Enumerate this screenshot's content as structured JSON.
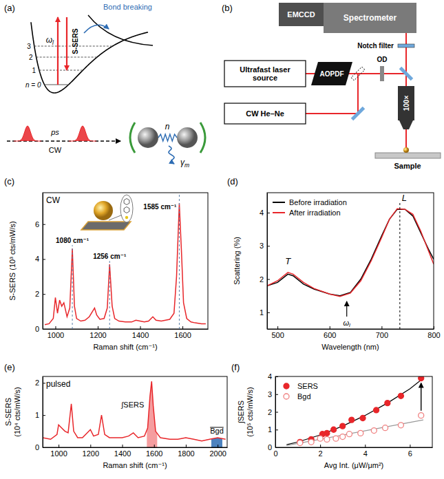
{
  "diagrams": {
    "a": {
      "panel": "(a)",
      "laser": {
        "base": "ω",
        "sub": "l"
      },
      "sers": "S-SERS",
      "bond": "Bond breaking",
      "levels": [
        "n = 0",
        "1",
        "2",
        "3"
      ],
      "pulse": "ps",
      "cw": "CW",
      "phonon": "n",
      "damping": {
        "base": "γ",
        "sub": "m"
      }
    },
    "b": {
      "panel": "(b)",
      "emccd": "EMCCD",
      "spectrometer": "Spectrometer",
      "notch": "Notch filter",
      "laser": "Ultrafast laser source",
      "aopdf": "AOPDF",
      "od": "OD",
      "cw": "CW He–Ne",
      "objective": "100×",
      "sample": "Sample"
    }
  },
  "chart_data": [
    {
      "panel": "(c)",
      "type": "line",
      "title": "CW",
      "x_label": "Raman shift (cm⁻¹)",
      "y_label": "S-SERS (10³ cts/mW/s)",
      "xlim": [
        940,
        1720
      ],
      "ylim": [
        0,
        7.8
      ],
      "xticks": [
        1000,
        1200,
        1400,
        1600
      ],
      "yticks": [
        0,
        2,
        4,
        6
      ],
      "series": [
        {
          "color": "#e8262a",
          "x": [
            950,
            970,
            990,
            1000,
            1010,
            1020,
            1030,
            1040,
            1055,
            1068,
            1080,
            1090,
            1100,
            1120,
            1140,
            1160,
            1175,
            1185,
            1195,
            1210,
            1230,
            1245,
            1256,
            1268,
            1280,
            1300,
            1330,
            1360,
            1380,
            1400,
            1420,
            1440,
            1460,
            1475,
            1500,
            1520,
            1540,
            1560,
            1572,
            1585,
            1595,
            1605,
            1620,
            1640,
            1660,
            1690,
            1710
          ],
          "values": [
            0.25,
            0.3,
            0.6,
            1.8,
            0.9,
            1.65,
            1.3,
            1.5,
            0.7,
            1.2,
            4.6,
            1.3,
            0.6,
            0.45,
            0.5,
            0.7,
            1.0,
            1.2,
            0.8,
            0.55,
            0.6,
            1.2,
            3.7,
            1.3,
            0.6,
            0.45,
            0.4,
            0.4,
            0.5,
            0.45,
            0.4,
            0.45,
            0.7,
            0.5,
            0.45,
            0.5,
            0.55,
            0.9,
            3.0,
            7.2,
            4.5,
            1.5,
            0.6,
            0.4,
            0.35,
            0.3,
            0.3
          ]
        }
      ],
      "annotations": [
        {
          "x": 1080,
          "text": "1080 cm⁻¹",
          "line_style": "dashed"
        },
        {
          "x": 1256,
          "text": "1256 cm⁻¹",
          "line_style": "dashed"
        },
        {
          "x": 1585,
          "text": "1585 cm⁻¹",
          "line_style": "dashed"
        }
      ]
    },
    {
      "panel": "(d)",
      "type": "line",
      "x_label": "Wavelength (nm)",
      "y_label": "Scattering (%)",
      "xlim": [
        480,
        800
      ],
      "ylim": [
        0.5,
        4.6
      ],
      "xticks": [
        500,
        600,
        700,
        800
      ],
      "yticks": [
        1,
        2,
        3,
        4
      ],
      "legend": "top-left",
      "series": [
        {
          "name": "Before irradiation",
          "color": "#000000",
          "x": [
            480,
            500,
            520,
            530,
            550,
            570,
            600,
            620,
            640,
            660,
            680,
            700,
            715,
            730,
            745,
            760,
            775,
            790,
            800
          ],
          "values": [
            1.8,
            1.9,
            2.15,
            2.1,
            1.85,
            1.7,
            1.55,
            1.5,
            1.6,
            2.0,
            2.6,
            3.3,
            3.8,
            4.1,
            4.1,
            3.9,
            3.4,
            2.9,
            2.6
          ]
        },
        {
          "name": "After irradiation",
          "color": "#e8262a",
          "x": [
            480,
            500,
            520,
            530,
            550,
            570,
            600,
            620,
            640,
            660,
            680,
            700,
            715,
            730,
            745,
            760,
            775,
            790,
            800
          ],
          "values": [
            1.8,
            1.95,
            2.2,
            2.15,
            1.9,
            1.72,
            1.55,
            1.48,
            1.58,
            1.95,
            2.55,
            3.25,
            3.8,
            4.12,
            4.1,
            3.95,
            3.45,
            2.85,
            2.45
          ]
        }
      ],
      "annotations": [
        {
          "x": 520,
          "y": 2.45,
          "text": "T"
        },
        {
          "x": 735,
          "y": 4.35,
          "text": "L",
          "line_style": "dashed"
        },
        {
          "x": 633,
          "text": {
            "base": "ω",
            "sub": "l"
          },
          "marker": "arrow"
        }
      ]
    },
    {
      "panel": "(e)",
      "type": "line",
      "title": "pulsed",
      "x_label": "Raman shift (cm⁻¹)",
      "y_label": "S-SERS (10⁴ cts/mW/s)",
      "xlim": [
        900,
        2060
      ],
      "ylim": [
        0,
        2.2
      ],
      "xticks": [
        1000,
        1200,
        1400,
        1600,
        1800,
        2000
      ],
      "yticks": [
        0,
        1,
        2
      ],
      "series": [
        {
          "color": "#e8262a",
          "x": [
            900,
            950,
            990,
            1000,
            1020,
            1040,
            1060,
            1080,
            1095,
            1120,
            1150,
            1180,
            1200,
            1220,
            1250,
            1270,
            1290,
            1320,
            1360,
            1400,
            1440,
            1470,
            1500,
            1540,
            1560,
            1575,
            1585,
            1595,
            1610,
            1640,
            1700,
            1750,
            1800,
            1850,
            1900,
            1950,
            2000,
            2050
          ],
          "values": [
            0.3,
            0.25,
            0.4,
            0.7,
            0.6,
            0.5,
            0.45,
            1.35,
            0.5,
            0.3,
            0.3,
            0.45,
            0.55,
            0.35,
            0.4,
            1.0,
            0.4,
            0.3,
            0.3,
            0.3,
            0.35,
            0.45,
            0.3,
            0.35,
            0.6,
            1.6,
            2.05,
            1.3,
            0.5,
            0.3,
            0.25,
            0.25,
            0.3,
            0.25,
            0.2,
            0.25,
            0.3,
            0.25
          ]
        }
      ],
      "regions": [
        {
          "range": [
            1555,
            1620
          ],
          "text": "∫SERS",
          "color": "#e8262a"
        },
        {
          "range": [
            1960,
            2030
          ],
          "text": "Bgd",
          "color": "#2e6db4",
          "line_style": "overline"
        }
      ]
    },
    {
      "panel": "(f)",
      "type": "scatter",
      "x_label": "Avg Int. (μW/μm²)",
      "y_label": "∫SERS (10⁵ cts/mW/s)",
      "xlim": [
        0,
        7
      ],
      "ylim": [
        0,
        4
      ],
      "xticks": [
        0,
        2,
        4,
        6
      ],
      "yticks": [
        0,
        1,
        2,
        3,
        4
      ],
      "legend": "top-left",
      "series": [
        {
          "name": "SERS",
          "color": "#e8262a",
          "marker": "filled-circle",
          "x": [
            1.1,
            1.6,
            2.1,
            2.3,
            2.6,
            3.0,
            3.4,
            3.9,
            4.5,
            5.0,
            5.6,
            6.5
          ],
          "values": [
            0.3,
            0.45,
            0.75,
            0.8,
            1.0,
            1.2,
            1.55,
            1.65,
            2.1,
            2.5,
            2.9,
            3.9
          ]
        },
        {
          "name": "Bgd",
          "color": "#f08080",
          "marker": "open-circle",
          "x": [
            1.1,
            1.6,
            2.0,
            2.3,
            2.7,
            3.0,
            3.3,
            3.8,
            4.4,
            4.9,
            5.6,
            6.5
          ],
          "values": [
            0.25,
            0.3,
            0.5,
            0.45,
            0.5,
            0.6,
            0.75,
            0.8,
            0.95,
            1.1,
            1.25,
            1.8
          ]
        },
        {
          "type": "line",
          "color": "#000000",
          "x": [
            0.5,
            1,
            2,
            3,
            4,
            5,
            6,
            6.6
          ],
          "values": [
            0.15,
            0.3,
            0.7,
            1.2,
            1.8,
            2.5,
            3.3,
            3.9
          ]
        },
        {
          "type": "line",
          "color": "#999999",
          "x": [
            0.5,
            6.6
          ],
          "values": [
            0.1,
            1.55
          ]
        }
      ]
    }
  ]
}
